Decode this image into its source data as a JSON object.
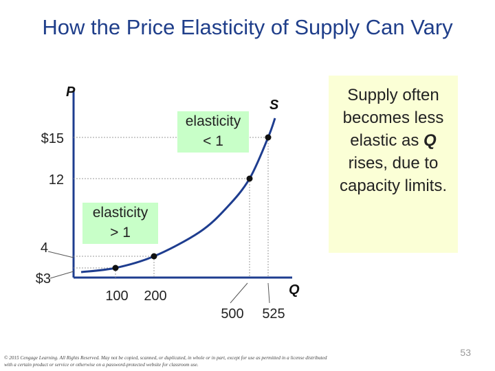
{
  "slide": {
    "title": "How the Price Elasticity of Supply Can Vary",
    "page_number": "53",
    "copyright": "© 2015 Cengage Learning. All Rights Reserved. May not be copied, scanned, or duplicated, in whole or in part, except for use as permitted in a license distributed with a certain product or service or otherwise on a password-protected website for classroom use."
  },
  "callout": {
    "before": "Supply often becomes less elastic as ",
    "emph": "Q",
    "after": " rises, due to capacity limits."
  },
  "elasticity_labels": {
    "inelastic": "elasticity\n< 1",
    "elastic": "elasticity\n> 1"
  },
  "colors": {
    "title": "#1f3e8a",
    "curve": "#1e3d8f",
    "axis": "#1e3d8f",
    "callout_bg": "#fbffd6",
    "elasticity_bg": "#c8ffc8",
    "dashed": "#999999"
  },
  "chart_data": {
    "type": "line",
    "xlabel": "Q",
    "ylabel": "P",
    "series": [
      {
        "name": "S",
        "points": [
          {
            "x": 100,
            "y": 3,
            "x_label": "100",
            "y_label": "$3",
            "marked": true
          },
          {
            "x": 200,
            "y": 4,
            "x_label": "200",
            "y_label": "4",
            "marked": true
          },
          {
            "x": 500,
            "y": 12,
            "x_label": "500",
            "y_label": "12",
            "marked": true
          },
          {
            "x": 525,
            "y": 15,
            "x_label": "525",
            "y_label": "$15",
            "marked": true
          }
        ]
      }
    ],
    "x_tick_labels": [
      "100",
      "200",
      "500",
      "525"
    ],
    "y_tick_labels": [
      "$3",
      "4",
      "12",
      "$15"
    ],
    "grid": false,
    "legend": "none"
  }
}
